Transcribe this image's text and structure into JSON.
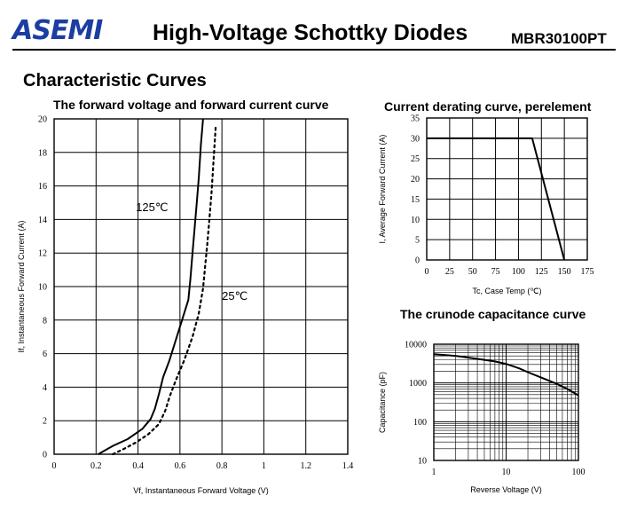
{
  "header": {
    "logo": "ASEMI",
    "title": "High-Voltage Schottky Diodes",
    "part_number": "MBR30100PT"
  },
  "section_title": "Characteristic Curves",
  "colors": {
    "logo": "#1c3ea3",
    "ink": "#000000"
  },
  "chart_data": [
    {
      "id": "forward",
      "type": "line",
      "title": "The forward voltage and forward current curve",
      "xlabel": "Vf, Instantaneous Forward Voltage (V)",
      "ylabel": "If, Instantaneous Forward Current (A)",
      "xlim": [
        0,
        1.4
      ],
      "ylim": [
        0,
        20
      ],
      "xticks": [
        0,
        0.2,
        0.4,
        0.6,
        0.8,
        1,
        1.2,
        1.4
      ],
      "xticklabels": [
        "0",
        "0.2",
        "0.4",
        "0.6",
        "0.8",
        "1",
        "1.2",
        "1.4"
      ],
      "yticks": [
        0,
        2,
        4,
        6,
        8,
        10,
        12,
        14,
        16,
        18,
        20
      ],
      "yticklabels": [
        "0",
        "2",
        "4",
        "6",
        "8",
        "10",
        "12",
        "14",
        "16",
        "18",
        "20"
      ],
      "grid": true,
      "annotations": [
        {
          "text": "125℃",
          "x": 0.39,
          "y": 14.5
        },
        {
          "text": "25℃",
          "x": 0.8,
          "y": 9.2
        }
      ],
      "series": [
        {
          "name": "125℃",
          "style": "solid",
          "x": [
            0.21,
            0.28,
            0.35,
            0.42,
            0.46,
            0.48,
            0.5,
            0.52,
            0.55,
            0.58,
            0.61,
            0.64,
            0.65,
            0.66,
            0.67,
            0.68,
            0.69,
            0.7,
            0.71
          ],
          "y": [
            0,
            0.5,
            0.9,
            1.5,
            2.1,
            2.7,
            3.6,
            4.6,
            5.6,
            6.8,
            8.0,
            9.2,
            10.5,
            12.0,
            13.5,
            15.0,
            16.5,
            18.5,
            20
          ]
        },
        {
          "name": "25℃",
          "style": "dotted",
          "x": [
            0.28,
            0.33,
            0.39,
            0.45,
            0.5,
            0.53,
            0.55,
            0.58,
            0.62,
            0.66,
            0.69,
            0.71,
            0.72,
            0.73,
            0.74,
            0.75,
            0.76,
            0.77
          ],
          "y": [
            0,
            0.3,
            0.7,
            1.2,
            1.8,
            2.6,
            3.4,
            4.4,
            5.6,
            7.0,
            8.4,
            9.9,
            11.2,
            12.5,
            14.0,
            15.5,
            17.5,
            19.5
          ]
        }
      ]
    },
    {
      "id": "derating",
      "type": "line",
      "title": "Current derating curve, perelement",
      "xlabel": "Tc, Case Temp (℃)",
      "ylabel": "I, Average Forward Current (A)",
      "xlim": [
        0,
        175
      ],
      "ylim": [
        0,
        35
      ],
      "xticks": [
        0,
        25,
        50,
        75,
        100,
        125,
        150,
        175
      ],
      "xticklabels": [
        "0",
        "25",
        "50",
        "75",
        "100",
        "125",
        "150",
        "175"
      ],
      "yticks": [
        0,
        5,
        10,
        15,
        20,
        25,
        30,
        35
      ],
      "yticklabels": [
        "0",
        "5",
        "10",
        "15",
        "20",
        "25",
        "30",
        "35"
      ],
      "grid": true,
      "series": [
        {
          "x": [
            0,
            115,
            150
          ],
          "y": [
            30,
            30,
            0
          ],
          "style": "solid"
        }
      ]
    },
    {
      "id": "capacitance",
      "type": "line",
      "title": "The crunode capacitance curve",
      "xlabel": "Reverse Voltage (V)",
      "ylabel": "Capacitance (pF)",
      "xscale": "log",
      "yscale": "log",
      "xlim": [
        1,
        100
      ],
      "ylim": [
        10,
        10000
      ],
      "xticks": [
        1,
        10,
        100
      ],
      "xticklabels": [
        "1",
        "10",
        "100"
      ],
      "yticks": [
        10,
        100,
        1000,
        10000
      ],
      "yticklabels": [
        "10",
        "100",
        "1000",
        "10000"
      ],
      "grid": true,
      "series": [
        {
          "x": [
            1,
            2,
            4,
            7,
            10,
            15,
            20,
            30,
            50,
            70,
            100
          ],
          "y": [
            5500,
            5000,
            4200,
            3600,
            3100,
            2400,
            1900,
            1400,
            950,
            700,
            480
          ],
          "style": "solid"
        }
      ]
    }
  ]
}
